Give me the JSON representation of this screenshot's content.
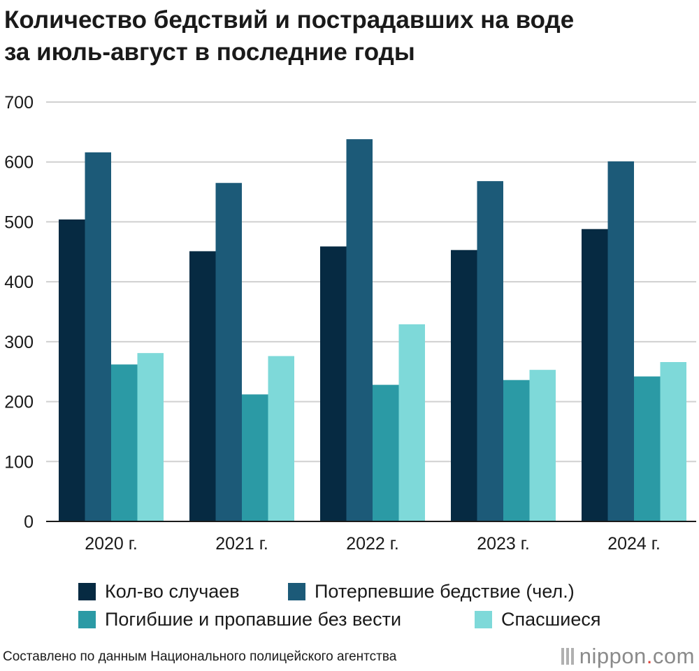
{
  "title_line1": "Количество бедствий и пострадавших на воде",
  "title_line2": "за июль-август в последние годы",
  "source": "Составлено по данным Национального полицейского агентства",
  "brand": {
    "name": "nippon",
    "dot": ".",
    "tld": "com"
  },
  "colors": {
    "series1": "#062a42",
    "series2": "#1c5a78",
    "series3": "#2b9aa5",
    "series4": "#7ed9d9",
    "grid": "#d0d0d0",
    "axis": "#1a1a1a"
  },
  "chart_data": {
    "type": "bar",
    "title": "Количество бедствий и пострадавших на воде за июль-август в последние годы",
    "categories": [
      "2020 г.",
      "2021 г.",
      "2022 г.",
      "2023 г.",
      "2024 г."
    ],
    "series": [
      {
        "name": "Кол-во случаев",
        "values": [
          504,
          451,
          459,
          453,
          488
        ]
      },
      {
        "name": "Потерпевшие бедствие (чел.)",
        "values": [
          616,
          565,
          638,
          568,
          601
        ]
      },
      {
        "name": "Погибшие и пропавшие без вести",
        "values": [
          262,
          212,
          228,
          236,
          242
        ]
      },
      {
        "name": "Спасшиеся",
        "values": [
          281,
          276,
          329,
          253,
          266
        ]
      }
    ],
    "ylim": [
      0,
      700
    ],
    "yticks": [
      "0",
      "100",
      "200",
      "300",
      "400",
      "500",
      "600",
      "700"
    ],
    "grid": true,
    "legend_position": "bottom"
  }
}
